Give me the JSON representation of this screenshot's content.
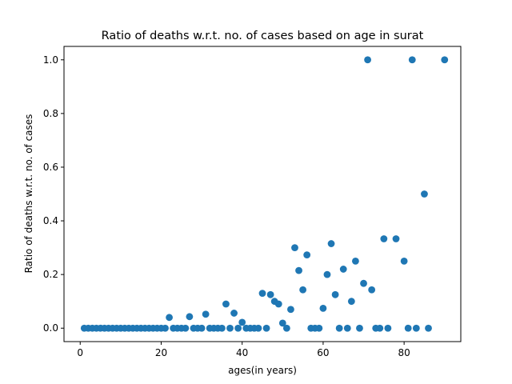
{
  "chart_data": {
    "type": "scatter",
    "title": "Ratio of deaths w.r.t. no. of cases based on age in surat",
    "xlabel": "ages(in years)",
    "ylabel": "Ratio of deaths w.r.t. no. of cases",
    "xlim": [
      -4,
      94
    ],
    "ylim": [
      -0.05,
      1.05
    ],
    "xticks": [
      0,
      20,
      40,
      60,
      80
    ],
    "yticks": [
      0.0,
      0.2,
      0.4,
      0.6,
      0.8,
      1.0
    ],
    "ytick_labels": [
      "0.0",
      "0.2",
      "0.4",
      "0.6",
      "0.8",
      "1.0"
    ],
    "grid": false,
    "marker_color": "#1f77b4",
    "points": [
      {
        "x": 1,
        "y": 0
      },
      {
        "x": 2,
        "y": 0
      },
      {
        "x": 3,
        "y": 0
      },
      {
        "x": 4,
        "y": 0
      },
      {
        "x": 5,
        "y": 0
      },
      {
        "x": 6,
        "y": 0
      },
      {
        "x": 7,
        "y": 0
      },
      {
        "x": 8,
        "y": 0
      },
      {
        "x": 9,
        "y": 0
      },
      {
        "x": 10,
        "y": 0
      },
      {
        "x": 11,
        "y": 0
      },
      {
        "x": 12,
        "y": 0
      },
      {
        "x": 13,
        "y": 0
      },
      {
        "x": 14,
        "y": 0
      },
      {
        "x": 15,
        "y": 0
      },
      {
        "x": 16,
        "y": 0
      },
      {
        "x": 17,
        "y": 0
      },
      {
        "x": 18,
        "y": 0
      },
      {
        "x": 19,
        "y": 0
      },
      {
        "x": 20,
        "y": 0
      },
      {
        "x": 21,
        "y": 0
      },
      {
        "x": 22,
        "y": 0.04
      },
      {
        "x": 23,
        "y": 0
      },
      {
        "x": 24,
        "y": 0
      },
      {
        "x": 25,
        "y": 0
      },
      {
        "x": 26,
        "y": 0
      },
      {
        "x": 27,
        "y": 0.043
      },
      {
        "x": 28,
        "y": 0
      },
      {
        "x": 29,
        "y": 0
      },
      {
        "x": 30,
        "y": 0
      },
      {
        "x": 31,
        "y": 0.052
      },
      {
        "x": 32,
        "y": 0
      },
      {
        "x": 33,
        "y": 0
      },
      {
        "x": 34,
        "y": 0
      },
      {
        "x": 35,
        "y": 0
      },
      {
        "x": 36,
        "y": 0.09
      },
      {
        "x": 37,
        "y": 0
      },
      {
        "x": 38,
        "y": 0.056
      },
      {
        "x": 39,
        "y": 0
      },
      {
        "x": 40,
        "y": 0.022
      },
      {
        "x": 41,
        "y": 0
      },
      {
        "x": 42,
        "y": 0
      },
      {
        "x": 43,
        "y": 0
      },
      {
        "x": 44,
        "y": 0
      },
      {
        "x": 45,
        "y": 0.13
      },
      {
        "x": 46,
        "y": 0
      },
      {
        "x": 47,
        "y": 0.125
      },
      {
        "x": 48,
        "y": 0.1
      },
      {
        "x": 49,
        "y": 0.09
      },
      {
        "x": 50,
        "y": 0.019
      },
      {
        "x": 51,
        "y": 0
      },
      {
        "x": 52,
        "y": 0.07
      },
      {
        "x": 53,
        "y": 0.3
      },
      {
        "x": 54,
        "y": 0.215
      },
      {
        "x": 55,
        "y": 0.143
      },
      {
        "x": 56,
        "y": 0.273
      },
      {
        "x": 57,
        "y": 0
      },
      {
        "x": 58,
        "y": 0
      },
      {
        "x": 59,
        "y": 0
      },
      {
        "x": 60,
        "y": 0.074
      },
      {
        "x": 61,
        "y": 0.2
      },
      {
        "x": 62,
        "y": 0.315
      },
      {
        "x": 63,
        "y": 0.125
      },
      {
        "x": 64,
        "y": 0
      },
      {
        "x": 65,
        "y": 0.22
      },
      {
        "x": 66,
        "y": 0
      },
      {
        "x": 67,
        "y": 0.1
      },
      {
        "x": 68,
        "y": 0.25
      },
      {
        "x": 69,
        "y": 0
      },
      {
        "x": 70,
        "y": 0.167
      },
      {
        "x": 71,
        "y": 1.0
      },
      {
        "x": 72,
        "y": 0.143
      },
      {
        "x": 73,
        "y": 0
      },
      {
        "x": 74,
        "y": 0
      },
      {
        "x": 75,
        "y": 0.333
      },
      {
        "x": 76,
        "y": 0
      },
      {
        "x": 78,
        "y": 0.333
      },
      {
        "x": 80,
        "y": 0.25
      },
      {
        "x": 81,
        "y": 0
      },
      {
        "x": 82,
        "y": 1.0
      },
      {
        "x": 83,
        "y": 0
      },
      {
        "x": 85,
        "y": 0.5
      },
      {
        "x": 86,
        "y": 0
      },
      {
        "x": 90,
        "y": 1.0
      }
    ]
  }
}
